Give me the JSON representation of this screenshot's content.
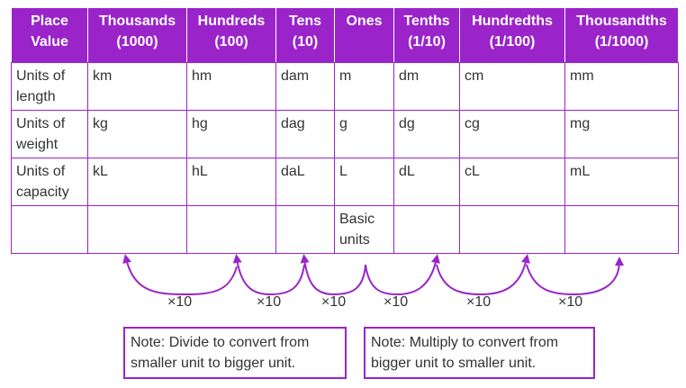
{
  "table": {
    "headers": [
      {
        "line1": "Place",
        "line2": "Value"
      },
      {
        "line1": "Thousands",
        "line2": "(1000)"
      },
      {
        "line1": "Hundreds",
        "line2": "(100)"
      },
      {
        "line1": "Tens",
        "line2": "(10)"
      },
      {
        "line1": "Ones",
        "line2": ""
      },
      {
        "line1": "Tenths",
        "line2": "(1/10)"
      },
      {
        "line1": "Hundredths",
        "line2": "(1/100)"
      },
      {
        "line1": "Thousandths",
        "line2": "(1/1000)"
      }
    ],
    "rows": [
      {
        "label": "Units of length",
        "cells": [
          "km",
          "hm",
          "dam",
          "m",
          "dm",
          "cm",
          "mm"
        ]
      },
      {
        "label": "Units of weight",
        "cells": [
          "kg",
          "hg",
          "dag",
          "g",
          "dg",
          "cg",
          "mg"
        ]
      },
      {
        "label": "Units of capacity",
        "cells": [
          "kL",
          "hL",
          "daL",
          "L",
          "dL",
          "cL",
          "mL"
        ]
      },
      {
        "label": "",
        "cells": [
          "",
          "",
          "",
          "Basic units",
          "",
          "",
          ""
        ]
      }
    ]
  },
  "arcs": {
    "factors": [
      "×10",
      "×10",
      "×10",
      "×10",
      "×10",
      "×10"
    ],
    "color": "#9a24c9"
  },
  "notes": {
    "divide": "Note: Divide to convert from smaller unit to bigger unit.",
    "multiply": "Note: Multiply to convert from bigger unit to smaller unit."
  }
}
